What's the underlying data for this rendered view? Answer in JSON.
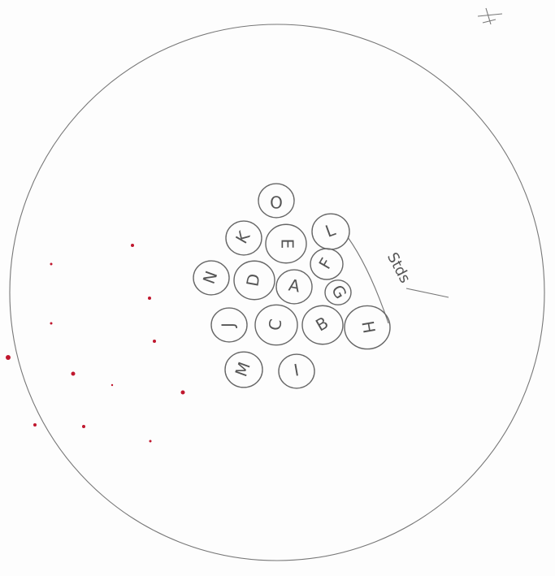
{
  "nodes": [
    {
      "label": "O"
    },
    {
      "label": "K"
    },
    {
      "label": "E"
    },
    {
      "label": "L"
    },
    {
      "label": "N"
    },
    {
      "label": "D"
    },
    {
      "label": "F"
    },
    {
      "label": "A"
    },
    {
      "label": "G"
    },
    {
      "label": "J"
    },
    {
      "label": "C"
    },
    {
      "label": "B"
    },
    {
      "label": "H"
    },
    {
      "label": "M"
    },
    {
      "label": "I"
    }
  ],
  "annotation": "Stds"
}
